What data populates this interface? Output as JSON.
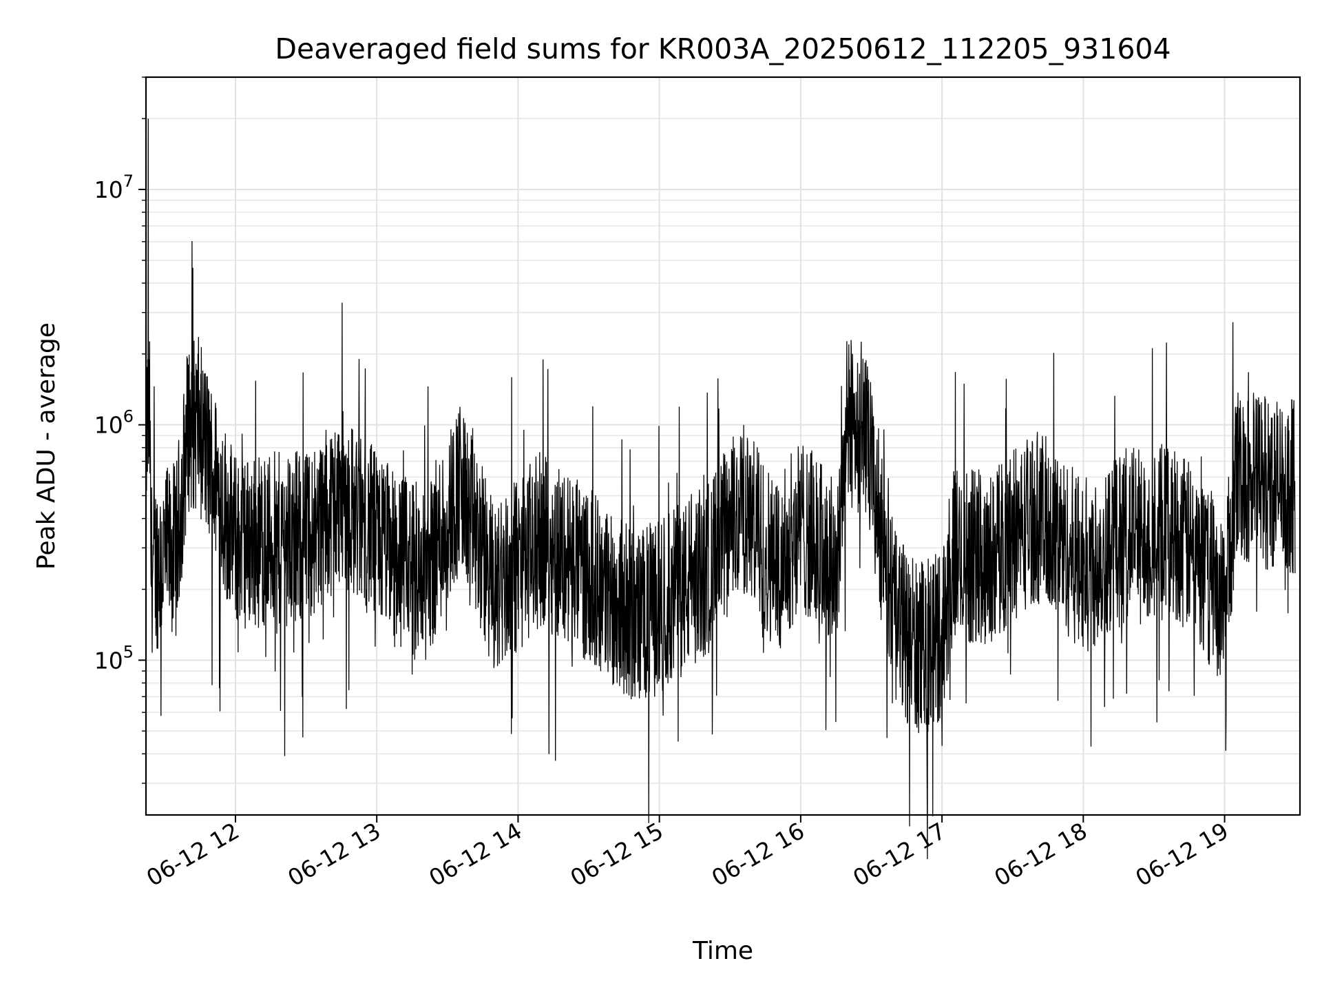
{
  "chart_data": {
    "type": "line",
    "title": "Deaveraged field sums for KR003A_20250612_112205_931604",
    "xlabel": "Time",
    "ylabel": "Peak ADU - average",
    "yscale": "log",
    "ylim": [
      22000,
      30000000
    ],
    "xlim": [
      "2025-06-12 11:22",
      "2025-06-12 19:32"
    ],
    "grid": "on (major x, major and minor y)",
    "legend": "none",
    "line_color": "#000000",
    "x_ticks": [
      {
        "value": "2025-06-12 12:00",
        "label": "06-12 12"
      },
      {
        "value": "2025-06-12 13:00",
        "label": "06-12 13"
      },
      {
        "value": "2025-06-12 14:00",
        "label": "06-12 14"
      },
      {
        "value": "2025-06-12 15:00",
        "label": "06-12 15"
      },
      {
        "value": "2025-06-12 16:00",
        "label": "06-12 16"
      },
      {
        "value": "2025-06-12 17:00",
        "label": "06-12 17"
      },
      {
        "value": "2025-06-12 18:00",
        "label": "06-12 18"
      },
      {
        "value": "2025-06-12 19:00",
        "label": "06-12 19"
      }
    ],
    "y_ticks": [
      {
        "value": 100000,
        "base": "10",
        "exp": "5"
      },
      {
        "value": 1000000,
        "base": "10",
        "exp": "6"
      },
      {
        "value": 10000000,
        "base": "10",
        "exp": "7"
      }
    ],
    "series": [
      {
        "values": [
          {
            "x": "2025-06-12 11:22",
            "y": 350000
          },
          {
            "x": "2025-06-12 11:23",
            "y": 20000000
          },
          {
            "x": "2025-06-12 11:24",
            "y": 250000
          },
          {
            "x": "2025-06-12 11:35",
            "y": 300000
          },
          {
            "x": "2025-06-12 11:41",
            "y": 1300000
          },
          {
            "x": "2025-06-12 11:50",
            "y": 650000
          },
          {
            "x": "2025-06-12 12:00",
            "y": 320000
          },
          {
            "x": "2025-06-12 12:30",
            "y": 330000
          },
          {
            "x": "2025-06-12 12:45",
            "y": 500000
          },
          {
            "x": "2025-06-12 13:00",
            "y": 330000
          },
          {
            "x": "2025-06-12 13:20",
            "y": 220000
          },
          {
            "x": "2025-06-12 13:35",
            "y": 550000
          },
          {
            "x": "2025-06-12 13:50",
            "y": 200000
          },
          {
            "x": "2025-06-12 14:10",
            "y": 330000
          },
          {
            "x": "2025-06-12 14:30",
            "y": 230000
          },
          {
            "x": "2025-06-12 14:50",
            "y": 150000
          },
          {
            "x": "2025-06-12 15:00",
            "y": 170000
          },
          {
            "x": "2025-06-12 15:20",
            "y": 240000
          },
          {
            "x": "2025-06-12 15:35",
            "y": 450000
          },
          {
            "x": "2025-06-12 15:50",
            "y": 250000
          },
          {
            "x": "2025-06-12 16:00",
            "y": 380000
          },
          {
            "x": "2025-06-12 16:15",
            "y": 250000
          },
          {
            "x": "2025-06-12 16:22",
            "y": 2000000
          },
          {
            "x": "2025-06-12 16:40",
            "y": 150000
          },
          {
            "x": "2025-06-12 16:50",
            "y": 110000
          },
          {
            "x": "2025-06-12 17:00",
            "y": 130000
          },
          {
            "x": "2025-06-12 17:05",
            "y": 280000
          },
          {
            "x": "2025-06-12 17:20",
            "y": 270000
          },
          {
            "x": "2025-06-12 17:40",
            "y": 420000
          },
          {
            "x": "2025-06-12 18:00",
            "y": 250000
          },
          {
            "x": "2025-06-12 18:20",
            "y": 350000
          },
          {
            "x": "2025-06-12 18:40",
            "y": 350000
          },
          {
            "x": "2025-06-12 19:00",
            "y": 180000
          },
          {
            "x": "2025-06-12 19:05",
            "y": 600000
          },
          {
            "x": "2025-06-12 19:30",
            "y": 550000
          }
        ]
      }
    ]
  }
}
